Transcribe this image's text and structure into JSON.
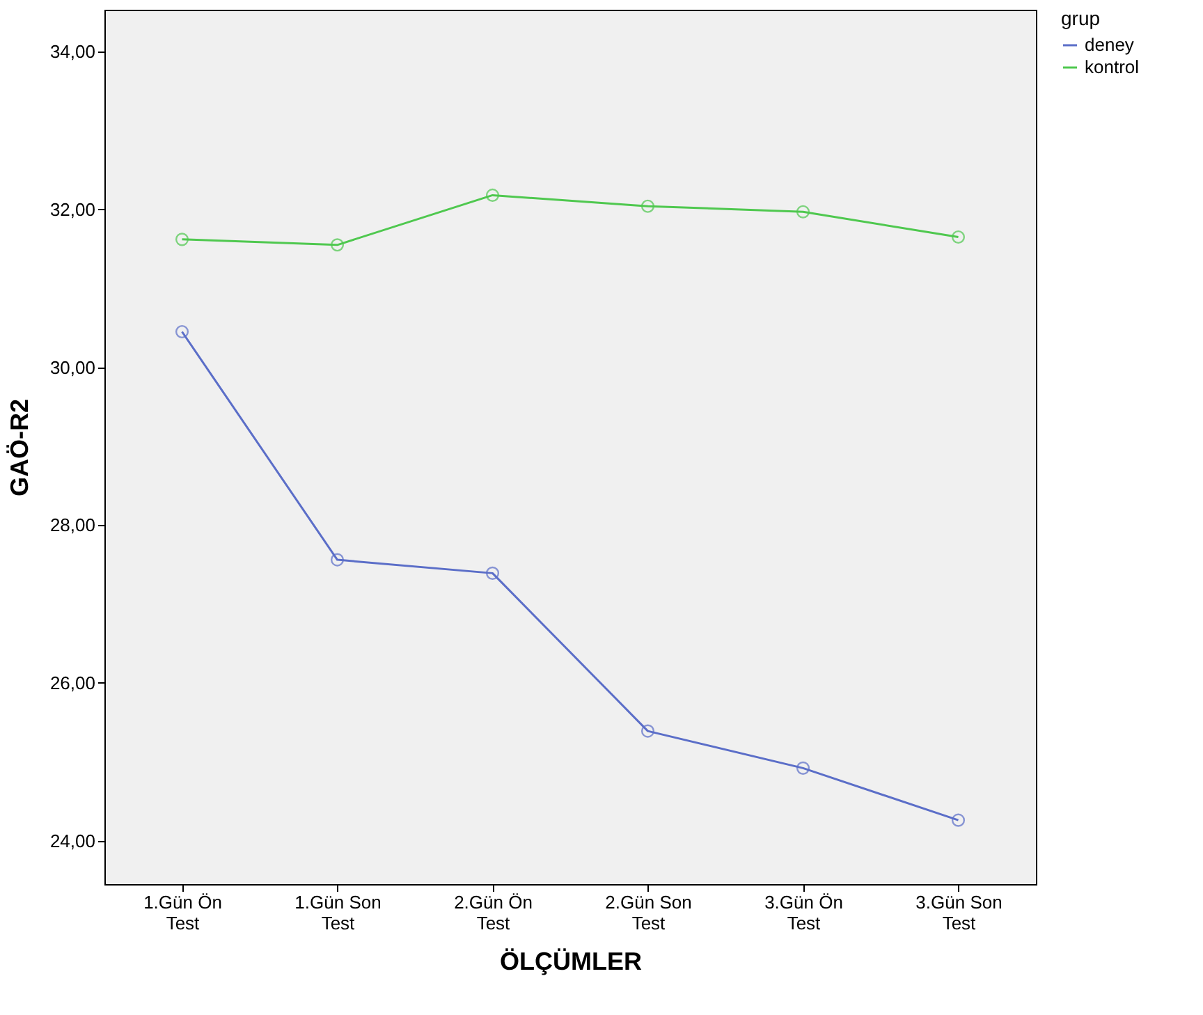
{
  "chart_data": {
    "type": "line",
    "xlabel": "ÖLÇÜMLER",
    "ylabel": "GAÖ-R2",
    "legend_title": "grup",
    "categories": [
      "1.Gün Ön Test",
      "1.Gün Son Test",
      "2.Gün Ön Test",
      "2.Gün Son Test",
      "3.Gün Ön Test",
      "3.Gün Son Test"
    ],
    "series": [
      {
        "name": "deney",
        "color": "#5b6ec8",
        "values": [
          30.45,
          27.56,
          27.39,
          25.39,
          24.92,
          24.26
        ]
      },
      {
        "name": "kontrol",
        "color": "#4fc84f",
        "values": [
          31.62,
          31.55,
          32.18,
          32.04,
          31.97,
          31.65
        ]
      }
    ],
    "ylim": [
      23.45,
      34.53
    ],
    "yticks": [
      {
        "value": 24,
        "label": "24,00"
      },
      {
        "value": 26,
        "label": "26,00"
      },
      {
        "value": 28,
        "label": "28,00"
      },
      {
        "value": 30,
        "label": "30,00"
      },
      {
        "value": 32,
        "label": "32,00"
      },
      {
        "value": 34,
        "label": "34,00"
      }
    ],
    "legend": "top right",
    "marker": "circle",
    "line_style": "solid",
    "grid": false
  }
}
